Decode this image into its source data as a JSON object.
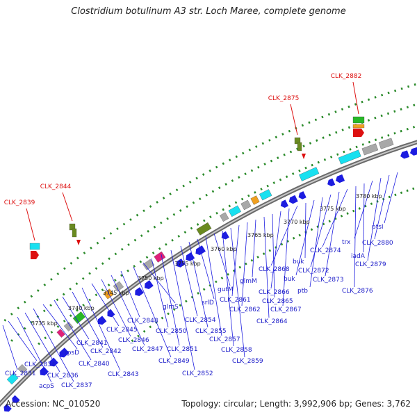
{
  "title": "Clostridium botulinum A3 str. Loch Maree, complete genome",
  "accession": "Accession: NC_010520",
  "topology": "Topology: circular; Length: 3,992,906 bp; Genes: 3,762",
  "colors": {
    "cds": "#1c1ce0",
    "highlight": "#dd1010",
    "backbone": "#8a8a8a",
    "dots": "#2a8a2a",
    "cyan": "#18e0f0",
    "gray": "#a8a8a8",
    "olive": "#6a8a20",
    "orange": "#f0a020",
    "magenta": "#e0207a",
    "green": "#28b828"
  },
  "chart_data": {
    "type": "genome-map",
    "scale_labels": [
      "3735 kbp",
      "3740 kbp",
      "3745 kbp",
      "3750 kbp",
      "3755 kbp",
      "3760 kbp",
      "3765 kbp",
      "3770 kbp",
      "3775 kbp",
      "3780 kbp"
    ],
    "highlighted_genes": [
      "CLK_2839",
      "CLK_2844",
      "CLK_2875",
      "CLK_2882"
    ],
    "gene_labels": [
      "CLK_2831",
      "CLK_2834",
      "acpS",
      "CLK_2836",
      "CLK_2837",
      "rpsD",
      "CLK_2840",
      "CLK_2841",
      "CLK_2842",
      "CLK_2843",
      "CLK_2845",
      "CLK_2846",
      "CLK_2847",
      "CLK_2848",
      "CLK_2849",
      "glmS",
      "CLK_2850",
      "CLK_2851",
      "CLK_2852",
      "CLK_2854",
      "CLK_2855",
      "srlD",
      "CLK_2857",
      "gutM",
      "CLK_2858",
      "CLK_2859",
      "CLK_2861",
      "CLK_2862",
      "glmM",
      "CLK_2864",
      "CLK_2865",
      "CLK_2866",
      "CLK_2867",
      "CLK_2868",
      "buk",
      "buk",
      "ptb",
      "CLK_2872",
      "CLK_2873",
      "CLK_2874",
      "CLK_2876",
      "iadA",
      "trx",
      "CLK_2879",
      "CLK_2880",
      "ptsI"
    ]
  }
}
